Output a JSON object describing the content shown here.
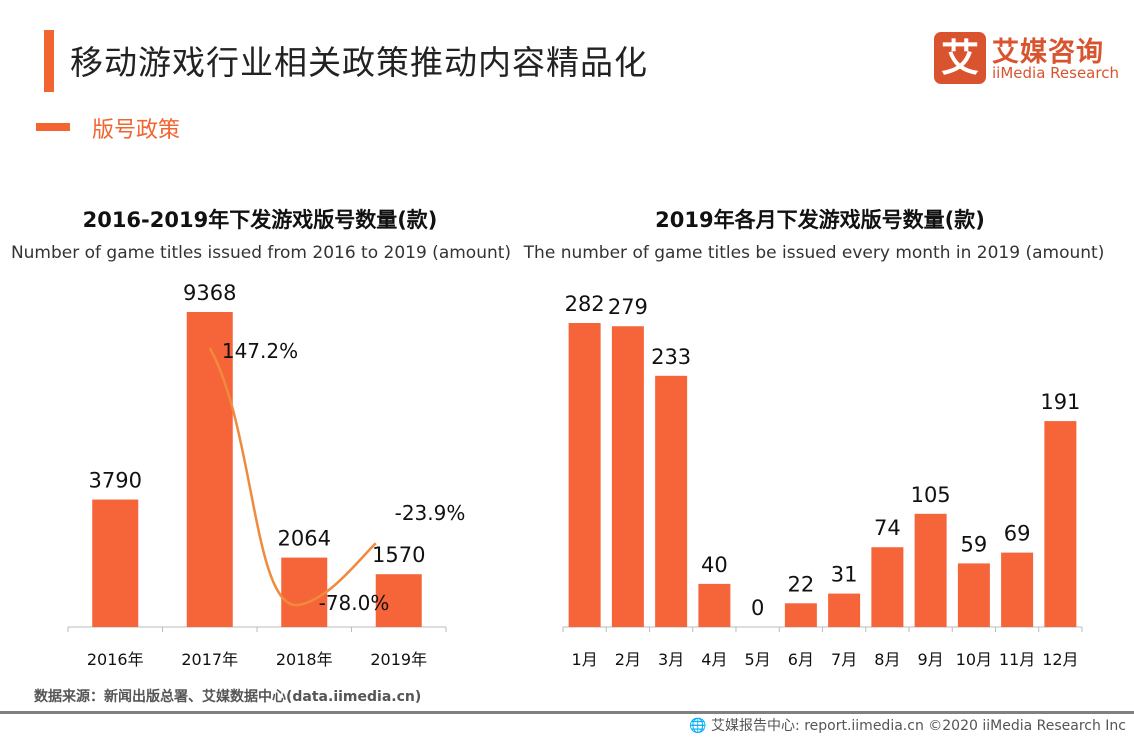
{
  "header": {
    "title": "移动游戏行业相关政策推动内容精品化",
    "subtitle": "版号政策"
  },
  "logo": {
    "mark": "艾",
    "cn": "艾媒咨询",
    "en": "iiMedia Research"
  },
  "colors": {
    "accent": "#f26430",
    "bar": "#f6643a",
    "line": "#f08a3c"
  },
  "chart_data": [
    {
      "type": "bar",
      "title": "2016-2019年下发游戏版号数量(款)",
      "subtitle": "Number of game titles issued from 2016 to 2019 (amount)",
      "categories": [
        "2016年",
        "2017年",
        "2018年",
        "2019年"
      ],
      "values": [
        3790,
        9368,
        2064,
        1570
      ],
      "value_labels": [
        "3790",
        "9368",
        "2064",
        "1570"
      ],
      "growth_line": {
        "type": "line",
        "smooth": true,
        "categories": [
          "2017年",
          "2018年",
          "2019年"
        ],
        "values": [
          147.2,
          -78.0,
          -23.9
        ],
        "labels": [
          "147.2%",
          "-78.0%",
          "-23.9%"
        ]
      },
      "grid": false
    },
    {
      "type": "bar",
      "title": "2019年各月下发游戏版号数量(款)",
      "subtitle": "The number of game titles be issued every month in 2019 (amount)",
      "categories": [
        "1月",
        "2月",
        "3月",
        "4月",
        "5月",
        "6月",
        "7月",
        "8月",
        "9月",
        "10月",
        "11月",
        "12月"
      ],
      "values": [
        282,
        279,
        233,
        40,
        0,
        22,
        31,
        74,
        105,
        59,
        69,
        191
      ],
      "value_labels": [
        "282",
        "279",
        "233",
        "40",
        "0",
        "22",
        "31",
        "74",
        "105",
        "59",
        "69",
        "191"
      ],
      "grid": false
    }
  ],
  "footer": {
    "source": "数据来源：新闻出版总署、艾媒数据中心(data.iimedia.cn)",
    "credit": "艾媒报告中心: report.iimedia.cn  ©2020  iiMedia Research  Inc"
  }
}
